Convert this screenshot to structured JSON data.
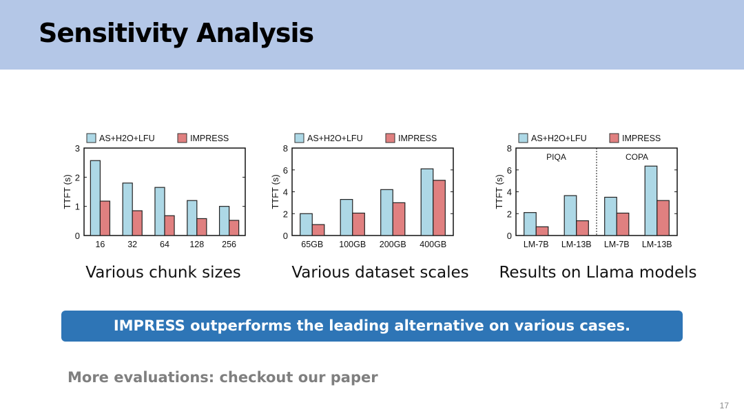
{
  "title": "Sensitivity Analysis",
  "colors": {
    "baseline": "#add8e6",
    "impress": "#e08080"
  },
  "chart_data": [
    {
      "type": "bar",
      "categories": [
        "16",
        "32",
        "64",
        "128",
        "256"
      ],
      "series": [
        {
          "name": "AS+H2O+LFU",
          "values": [
            2.57,
            1.8,
            1.65,
            1.2,
            1.0
          ]
        },
        {
          "name": "IMPRESS",
          "values": [
            1.18,
            0.85,
            0.68,
            0.58,
            0.52
          ]
        }
      ],
      "ylabel": "TTFT (s)",
      "ylim": [
        0,
        3
      ],
      "yticks": [
        0,
        1,
        2,
        3
      ],
      "legend": "top",
      "caption": "Various chunk sizes"
    },
    {
      "type": "bar",
      "categories": [
        "65GB",
        "100GB",
        "200GB",
        "400GB"
      ],
      "series": [
        {
          "name": "AS+H2O+LFU",
          "values": [
            2.0,
            3.3,
            4.2,
            6.1
          ]
        },
        {
          "name": "IMPRESS",
          "values": [
            1.0,
            2.05,
            3.0,
            5.05
          ]
        }
      ],
      "ylabel": "TTFT (s)",
      "ylim": [
        0,
        8
      ],
      "yticks": [
        0,
        2,
        4,
        6,
        8
      ],
      "legend": "top",
      "caption": "Various dataset scales"
    },
    {
      "type": "bar",
      "categories": [
        "LM-7B",
        "LM-13B",
        "LM-7B",
        "LM-13B"
      ],
      "series": [
        {
          "name": "AS+H2O+LFU",
          "values": [
            2.1,
            3.65,
            3.5,
            6.35
          ]
        },
        {
          "name": "IMPRESS",
          "values": [
            0.8,
            1.35,
            2.05,
            3.2
          ]
        }
      ],
      "ylabel": "TTFT (s)",
      "ylim": [
        0,
        8
      ],
      "yticks": [
        0,
        2,
        4,
        6,
        8
      ],
      "legend": "top",
      "groups": [
        "PIQA",
        "COPA"
      ],
      "caption": "Results on Llama models"
    }
  ],
  "banner": "IMPRESS outperforms the leading alternative on various cases.",
  "more": "More evaluations: checkout our paper",
  "page_number": "17"
}
